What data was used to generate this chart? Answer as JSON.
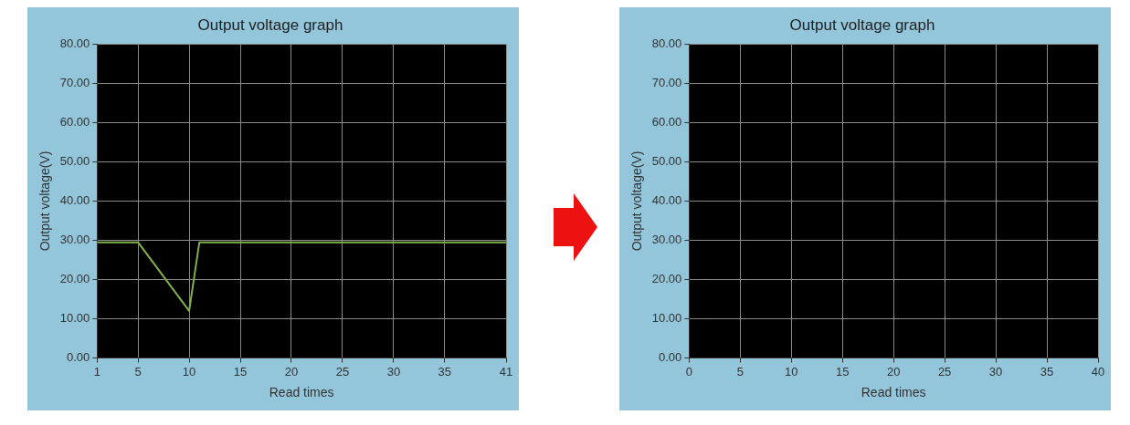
{
  "chart_data": [
    {
      "type": "line",
      "title": "Output voltage graph",
      "xlabel": "Read times",
      "ylabel": "Output voltage(V)",
      "series": [
        {
          "color": "#7fb24a",
          "x": [
            1,
            5,
            10,
            11,
            41
          ],
          "values": [
            29.5,
            29.5,
            12,
            29.5,
            29.5
          ]
        }
      ],
      "xlim": [
        1,
        41
      ],
      "xticks": [
        1,
        5,
        10,
        15,
        20,
        25,
        30,
        35,
        41
      ],
      "ylim": [
        0,
        80
      ],
      "yticks": [
        {
          "value": 0,
          "label": "0.00"
        },
        {
          "value": 10,
          "label": "10.00"
        },
        {
          "value": 20,
          "label": "20.00"
        },
        {
          "value": 30,
          "label": "30.00"
        },
        {
          "value": 40,
          "label": "40.00"
        },
        {
          "value": 50,
          "label": "50.00"
        },
        {
          "value": 60,
          "label": "60.00"
        },
        {
          "value": 70,
          "label": "70.00"
        },
        {
          "value": 80,
          "label": "80.00"
        }
      ],
      "grid": true,
      "legend": false,
      "marker": "none"
    },
    {
      "type": "line",
      "title": "Output voltage graph",
      "xlabel": "Read times",
      "ylabel": "Output voltage(V)",
      "xlim": [
        0,
        40
      ],
      "xticks": [
        0,
        5,
        10,
        15,
        20,
        25,
        30,
        35,
        40
      ],
      "ylim": [
        0,
        80
      ],
      "yticks": [
        {
          "value": 0,
          "label": "0.00"
        },
        {
          "value": 10,
          "label": "10.00"
        },
        {
          "value": 20,
          "label": "20.00"
        },
        {
          "value": 30,
          "label": "30.00"
        },
        {
          "value": 40,
          "label": "40.00"
        },
        {
          "value": 50,
          "label": "50.00"
        },
        {
          "value": 60,
          "label": "60.00"
        },
        {
          "value": 70,
          "label": "70.00"
        },
        {
          "value": 80,
          "label": "80.00"
        }
      ],
      "grid": true,
      "legend": false,
      "marker": "none"
    }
  ]
}
